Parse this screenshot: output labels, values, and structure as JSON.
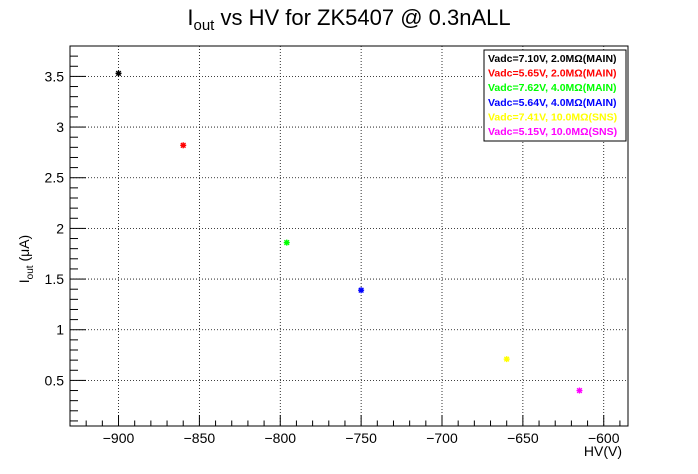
{
  "chart_data": {
    "type": "scatter",
    "title": {
      "main": "I",
      "sub": "out",
      "rest": " vs HV for ZK5407 @ 0.3nALL"
    },
    "xlabel": "HV(V)",
    "ylabel": {
      "main": "I",
      "sub": "out",
      "rest": " (μA)"
    },
    "xlim": [
      -930,
      -585
    ],
    "ylim": [
      0.05,
      3.8
    ],
    "x_ticks": [
      -900,
      -850,
      -800,
      -750,
      -700,
      -650,
      -600
    ],
    "x_tick_labels": [
      "−900",
      "−850",
      "−800",
      "−750",
      "−700",
      "−650",
      "−600"
    ],
    "y_ticks": [
      0.5,
      1,
      1.5,
      2,
      2.5,
      3,
      3.5
    ],
    "y_tick_labels": [
      "0.5",
      "1",
      "1.5",
      "2",
      "2.5",
      "3",
      "3.5"
    ],
    "grid": true,
    "legend_position": "top-right",
    "series": [
      {
        "name": "Vadc=7.10V, 2.0MΩ(MAIN)",
        "color": "#000000",
        "x": [
          -900
        ],
        "y": [
          3.53
        ]
      },
      {
        "name": "Vadc=5.65V, 2.0MΩ(MAIN)",
        "color": "#ff0000",
        "x": [
          -860
        ],
        "y": [
          2.82
        ]
      },
      {
        "name": "Vadc=7.62V, 4.0MΩ(MAIN)",
        "color": "#00ff00",
        "x": [
          -796
        ],
        "y": [
          1.86
        ]
      },
      {
        "name": "Vadc=5.64V, 4.0MΩ(MAIN)",
        "color": "#0000ff",
        "x": [
          -750
        ],
        "y": [
          1.39
        ]
      },
      {
        "name": "Vadc=7.41V, 10.0MΩ(SNS)",
        "color": "#ffff00",
        "x": [
          -660
        ],
        "y": [
          0.71
        ]
      },
      {
        "name": "Vadc=5.15V, 10.0MΩ(SNS)",
        "color": "#ff00ff",
        "x": [
          -615
        ],
        "y": [
          0.4
        ]
      }
    ]
  }
}
